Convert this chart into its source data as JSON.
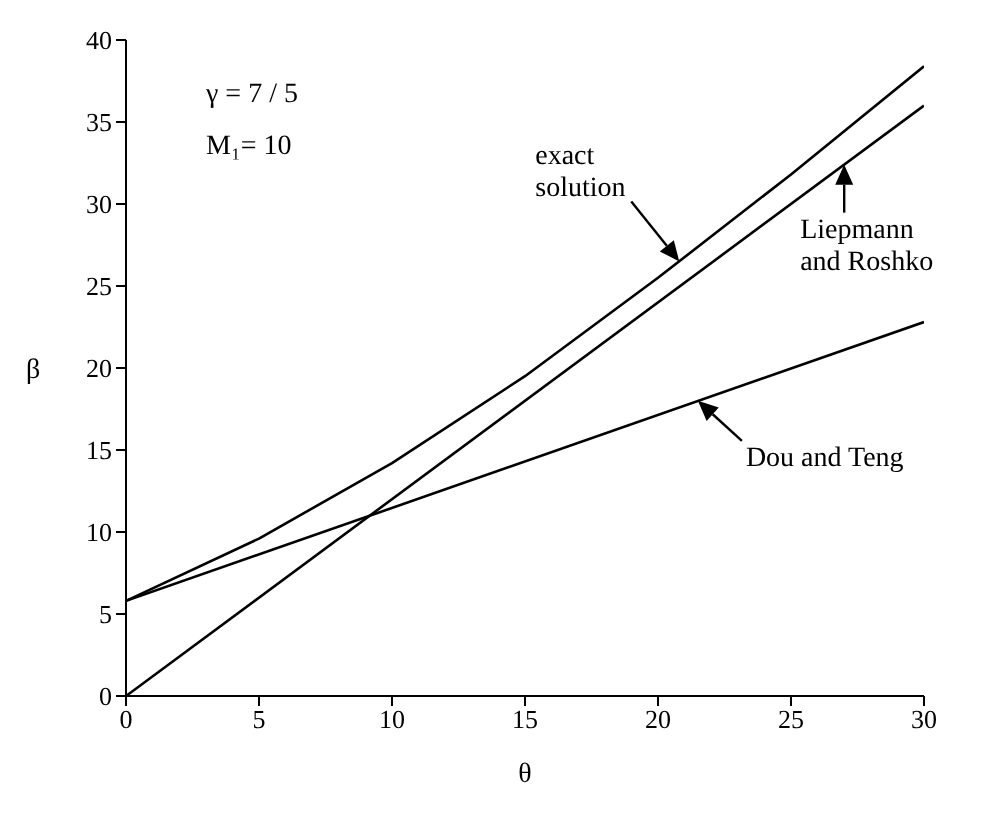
{
  "chart_data": {
    "type": "line",
    "xlabel": "θ",
    "ylabel": "β",
    "xlim": [
      0,
      30
    ],
    "ylim": [
      0,
      40
    ],
    "xticks": [
      0,
      5,
      10,
      15,
      20,
      25,
      30
    ],
    "yticks": [
      0,
      5,
      10,
      15,
      20,
      25,
      30,
      35,
      40
    ],
    "grid": false,
    "marker": "none",
    "line_style": "solid",
    "series": [
      {
        "color": "#000000",
        "x": [
          0,
          5,
          10,
          15,
          20,
          25,
          30
        ],
        "values": [
          5.8,
          9.6,
          14.2,
          19.5,
          25.5,
          31.8,
          38.4
        ]
      },
      {
        "color": "#000000",
        "x": [
          0,
          30
        ],
        "values": [
          0,
          36
        ]
      },
      {
        "color": "#000000",
        "x": [
          0,
          30
        ],
        "values": [
          5.8,
          22.8
        ]
      }
    ],
    "annotations": [
      "γ = 7 / 5",
      "M₁= 10",
      {
        "text": "exact solution",
        "x": 20.8,
        "y": 26.5
      },
      {
        "text": "Liepmann and Roshko",
        "x": 27,
        "y": 32.4
      },
      {
        "text": "Dou and Teng",
        "x": 21.5,
        "y": 18
      }
    ]
  }
}
